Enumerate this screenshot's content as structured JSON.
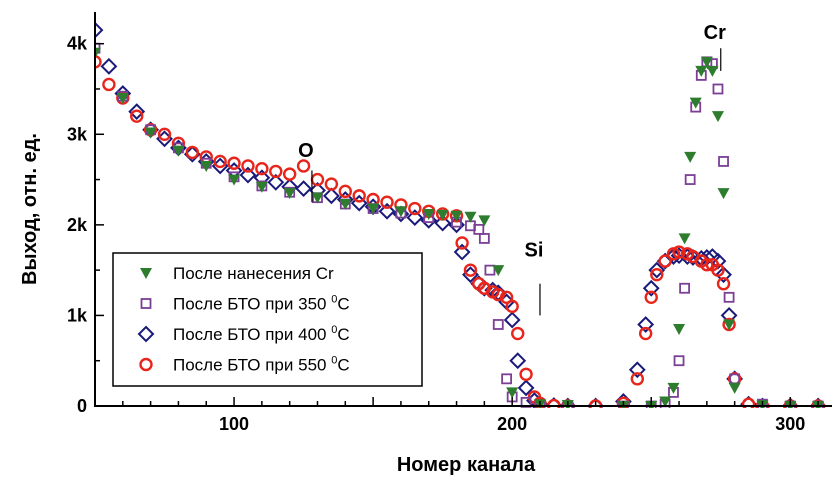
{
  "chart_data": {
    "type": "scatter",
    "xlabel": "Номер канала",
    "ylabel": "Выход, отн. ед.",
    "xlim": [
      50,
      315
    ],
    "ylim": [
      0,
      4350
    ],
    "x_ticks": [
      100,
      200,
      300
    ],
    "x_tick_labels": [
      "100",
      "200",
      "300"
    ],
    "y_ticks": [
      0,
      1000,
      2000,
      3000,
      4000
    ],
    "y_tick_labels": [
      "0",
      "1k",
      "2k",
      "3k",
      "4k"
    ],
    "grid": false,
    "legend_position": "lower-left",
    "annotations": [
      {
        "text": "O",
        "x": 128,
        "y": 2750
      },
      {
        "text": "Si",
        "x": 210,
        "y": 1650
      },
      {
        "text": "Cr",
        "x": 275,
        "y": 4050
      }
    ],
    "series": [
      {
        "name": "После нанесения Cr",
        "marker": "triangle-down",
        "color": "#2e7d2e",
        "x": [
          50,
          60,
          70,
          80,
          90,
          100,
          110,
          120,
          130,
          140,
          150,
          160,
          170,
          175,
          180,
          185,
          190,
          195,
          200,
          210,
          220,
          240,
          250,
          255,
          258,
          260,
          262,
          264,
          266,
          268,
          270,
          272,
          274,
          276,
          278,
          280,
          290,
          300,
          310
        ],
        "y": [
          3900,
          3400,
          3020,
          2820,
          2650,
          2500,
          2420,
          2350,
          2300,
          2230,
          2180,
          2150,
          2120,
          2110,
          2100,
          2090,
          2050,
          1500,
          150,
          20,
          10,
          0,
          0,
          50,
          200,
          850,
          1850,
          2750,
          3350,
          3700,
          3800,
          3700,
          3200,
          2350,
          900,
          200,
          10,
          0,
          0
        ]
      },
      {
        "name": "После БТО при 350 ⁰C",
        "marker": "square",
        "color": "#7b3f96",
        "x": [
          50,
          60,
          70,
          80,
          90,
          100,
          110,
          120,
          130,
          140,
          150,
          160,
          170,
          180,
          185,
          188,
          190,
          192,
          195,
          198,
          200,
          205,
          210,
          220,
          240,
          250,
          255,
          258,
          260,
          262,
          264,
          266,
          268,
          270,
          272,
          274,
          276,
          278,
          280,
          290,
          300,
          310
        ],
        "y": [
          3950,
          3420,
          3050,
          2850,
          2680,
          2530,
          2430,
          2360,
          2300,
          2230,
          2180,
          2130,
          2080,
          2030,
          1990,
          1950,
          1850,
          1500,
          900,
          300,
          100,
          40,
          10,
          5,
          0,
          0,
          20,
          150,
          500,
          1300,
          2500,
          3300,
          3650,
          3800,
          3780,
          3500,
          2700,
          1200,
          300,
          20,
          0,
          0
        ]
      },
      {
        "name": "После БТО при 400 ⁰C",
        "marker": "diamond",
        "color": "#1a1a7a",
        "x": [
          50,
          55,
          60,
          65,
          70,
          75,
          80,
          85,
          90,
          95,
          100,
          105,
          110,
          115,
          120,
          125,
          130,
          135,
          140,
          145,
          150,
          155,
          160,
          165,
          170,
          175,
          180,
          182,
          185,
          188,
          190,
          193,
          195,
          198,
          200,
          202,
          205,
          208,
          210,
          215,
          220,
          230,
          240,
          245,
          248,
          250,
          252,
          255,
          258,
          260,
          263,
          265,
          268,
          270,
          272,
          274,
          276,
          278,
          280,
          285,
          290,
          300,
          310
        ],
        "y": [
          4150,
          3750,
          3450,
          3250,
          3050,
          2950,
          2850,
          2780,
          2700,
          2650,
          2600,
          2550,
          2520,
          2470,
          2420,
          2400,
          2380,
          2320,
          2280,
          2240,
          2200,
          2150,
          2120,
          2080,
          2050,
          2020,
          2000,
          1700,
          1450,
          1350,
          1300,
          1280,
          1250,
          1150,
          950,
          500,
          200,
          60,
          20,
          5,
          0,
          0,
          50,
          400,
          900,
          1300,
          1500,
          1600,
          1650,
          1660,
          1650,
          1640,
          1630,
          1640,
          1650,
          1600,
          1450,
          1000,
          300,
          20,
          0,
          0,
          0
        ]
      },
      {
        "name": "После БТО при 550 ⁰C",
        "marker": "circle",
        "color": "#e8251b",
        "x": [
          50,
          55,
          60,
          65,
          70,
          75,
          80,
          85,
          90,
          95,
          100,
          105,
          110,
          115,
          120,
          125,
          130,
          135,
          140,
          145,
          150,
          155,
          160,
          165,
          170,
          175,
          180,
          182,
          185,
          188,
          190,
          193,
          195,
          198,
          200,
          202,
          205,
          208,
          210,
          215,
          220,
          230,
          240,
          245,
          248,
          250,
          252,
          255,
          258,
          260,
          263,
          265,
          268,
          270,
          272,
          274,
          276,
          278,
          280,
          285,
          290,
          300,
          310
        ],
        "y": [
          3800,
          3550,
          3400,
          3200,
          3050,
          3000,
          2900,
          2800,
          2750,
          2700,
          2680,
          2650,
          2620,
          2590,
          2560,
          2650,
          2500,
          2450,
          2370,
          2320,
          2280,
          2250,
          2220,
          2180,
          2150,
          2120,
          2100,
          1800,
          1500,
          1350,
          1300,
          1260,
          1230,
          1200,
          1100,
          800,
          350,
          100,
          30,
          5,
          0,
          0,
          30,
          300,
          800,
          1200,
          1450,
          1600,
          1680,
          1700,
          1680,
          1650,
          1600,
          1560,
          1560,
          1500,
          1350,
          900,
          300,
          20,
          0,
          0,
          0
        ]
      }
    ]
  }
}
